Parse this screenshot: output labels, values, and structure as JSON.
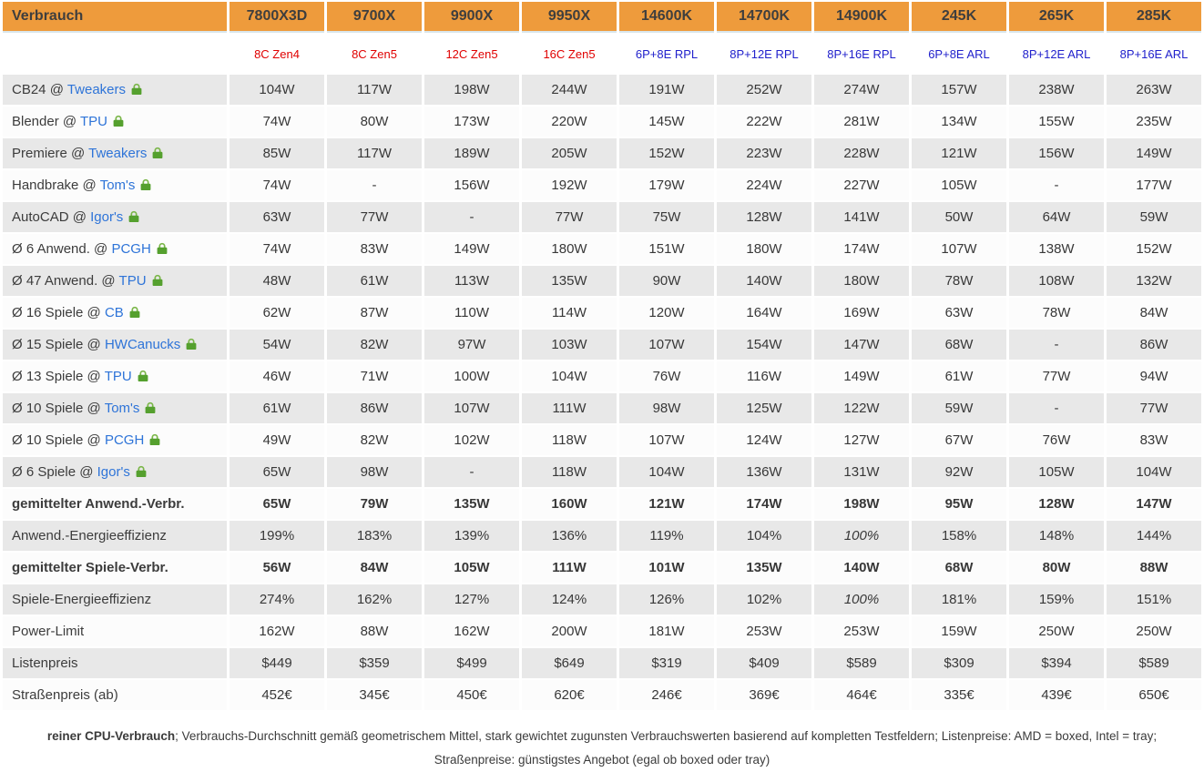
{
  "chart_data": {
    "type": "table",
    "title": "Verbrauch",
    "columns": [
      "7800X3D",
      "9700X",
      "9900X",
      "9950X",
      "14600K",
      "14700K",
      "14900K",
      "245K",
      "265K",
      "285K"
    ],
    "column_subtitles": [
      "8C Zen4",
      "8C Zen5",
      "12C Zen5",
      "16C Zen5",
      "6P+8E RPL",
      "8P+12E RPL",
      "8P+16E RPL",
      "6P+8E ARL",
      "8P+12E ARL",
      "8P+16E ARL"
    ],
    "column_vendors": [
      "amd",
      "amd",
      "amd",
      "amd",
      "intel",
      "intel",
      "intel",
      "intel",
      "intel",
      "intel"
    ],
    "rows": [
      {
        "label_prefix": "CB24 @ ",
        "source_link": "Tweakers",
        "row_style": "benchmark",
        "values": [
          "104W",
          "117W",
          "198W",
          "244W",
          "191W",
          "252W",
          "274W",
          "157W",
          "238W",
          "263W"
        ]
      },
      {
        "label_prefix": "Blender @ ",
        "source_link": "TPU",
        "row_style": "benchmark",
        "values": [
          "74W",
          "80W",
          "173W",
          "220W",
          "145W",
          "222W",
          "281W",
          "134W",
          "155W",
          "235W"
        ]
      },
      {
        "label_prefix": "Premiere @ ",
        "source_link": "Tweakers",
        "row_style": "benchmark",
        "values": [
          "85W",
          "117W",
          "189W",
          "205W",
          "152W",
          "223W",
          "228W",
          "121W",
          "156W",
          "149W"
        ]
      },
      {
        "label_prefix": "Handbrake @ ",
        "source_link": "Tom's",
        "row_style": "benchmark",
        "values": [
          "74W",
          "-",
          "156W",
          "192W",
          "179W",
          "224W",
          "227W",
          "105W",
          "-",
          "177W"
        ]
      },
      {
        "label_prefix": "AutoCAD @ ",
        "source_link": "Igor's",
        "row_style": "benchmark",
        "values": [
          "63W",
          "77W",
          "-",
          "77W",
          "75W",
          "128W",
          "141W",
          "50W",
          "64W",
          "59W"
        ]
      },
      {
        "label_prefix": "Ø 6 Anwend. @ ",
        "source_link": "PCGH",
        "row_style": "benchmark",
        "values": [
          "74W",
          "83W",
          "149W",
          "180W",
          "151W",
          "180W",
          "174W",
          "107W",
          "138W",
          "152W"
        ]
      },
      {
        "label_prefix": "Ø 47 Anwend. @ ",
        "source_link": "TPU",
        "row_style": "benchmark",
        "values": [
          "48W",
          "61W",
          "113W",
          "135W",
          "90W",
          "140W",
          "180W",
          "78W",
          "108W",
          "132W"
        ]
      },
      {
        "label_prefix": "Ø 16 Spiele @ ",
        "source_link": "CB",
        "row_style": "benchmark",
        "values": [
          "62W",
          "87W",
          "110W",
          "114W",
          "120W",
          "164W",
          "169W",
          "63W",
          "78W",
          "84W"
        ]
      },
      {
        "label_prefix": "Ø 15 Spiele @ ",
        "source_link": "HWCanucks",
        "row_style": "benchmark",
        "values": [
          "54W",
          "82W",
          "97W",
          "103W",
          "107W",
          "154W",
          "147W",
          "68W",
          "-",
          "86W"
        ]
      },
      {
        "label_prefix": "Ø 13 Spiele @ ",
        "source_link": "TPU",
        "row_style": "benchmark",
        "values": [
          "46W",
          "71W",
          "100W",
          "104W",
          "76W",
          "116W",
          "149W",
          "61W",
          "77W",
          "94W"
        ]
      },
      {
        "label_prefix": "Ø 10 Spiele @ ",
        "source_link": "Tom's",
        "row_style": "benchmark",
        "values": [
          "61W",
          "86W",
          "107W",
          "111W",
          "98W",
          "125W",
          "122W",
          "59W",
          "-",
          "77W"
        ]
      },
      {
        "label_prefix": "Ø 10 Spiele @ ",
        "source_link": "PCGH",
        "row_style": "benchmark",
        "values": [
          "49W",
          "82W",
          "102W",
          "118W",
          "107W",
          "124W",
          "127W",
          "67W",
          "76W",
          "83W"
        ]
      },
      {
        "label_prefix": "Ø 6 Spiele @ ",
        "source_link": "Igor's",
        "row_style": "benchmark",
        "values": [
          "65W",
          "98W",
          "-",
          "118W",
          "104W",
          "136W",
          "131W",
          "92W",
          "105W",
          "104W"
        ]
      },
      {
        "label": "gemittelter Anwend.-Verbr.",
        "row_style": "summary-bold",
        "values": [
          "65W",
          "79W",
          "135W",
          "160W",
          "121W",
          "174W",
          "198W",
          "95W",
          "128W",
          "147W"
        ]
      },
      {
        "label": "Anwend.-Energieeffizienz",
        "row_style": "colored",
        "italic_values": [
          "100%"
        ],
        "values": [
          "199%",
          "183%",
          "139%",
          "136%",
          "119%",
          "104%",
          "100%",
          "158%",
          "148%",
          "144%"
        ]
      },
      {
        "label": "gemittelter Spiele-Verbr.",
        "row_style": "summary-bold",
        "values": [
          "56W",
          "84W",
          "105W",
          "111W",
          "101W",
          "135W",
          "140W",
          "68W",
          "80W",
          "88W"
        ]
      },
      {
        "label": "Spiele-Energieeffizienz",
        "row_style": "colored",
        "italic_values": [
          "100%"
        ],
        "values": [
          "274%",
          "162%",
          "127%",
          "124%",
          "126%",
          "102%",
          "100%",
          "181%",
          "159%",
          "151%"
        ]
      },
      {
        "label": "Power-Limit",
        "row_style": "colored",
        "values": [
          "162W",
          "88W",
          "162W",
          "200W",
          "181W",
          "253W",
          "253W",
          "159W",
          "250W",
          "250W"
        ]
      },
      {
        "label": "Listenpreis",
        "row_style": "colored",
        "values": [
          "$449",
          "$359",
          "$499",
          "$649",
          "$319",
          "$409",
          "$589",
          "$309",
          "$394",
          "$589"
        ]
      },
      {
        "label": "Straßenpreis (ab)",
        "row_style": "colored",
        "values": [
          "452€",
          "345€",
          "450€",
          "620€",
          "246€",
          "369€",
          "464€",
          "335€",
          "439€",
          "650€"
        ]
      }
    ],
    "footnote_bold": "reiner CPU-Verbrauch",
    "footnote_rest": "; Verbrauchs-Durchschnitt gemäß geometrischem Mittel, stark gewichtet zugunsten Verbrauchswerten basierend auf kompletten Testfeldern; Listenpreise: AMD = boxed, Intel = tray; Straßenpreise: günstigstes Angebot (egal ob boxed oder tray)"
  },
  "colors": {
    "header_bg": "#ee9b3c",
    "header_text": "#3e3e3e",
    "amd_red": "#e00000",
    "intel_blue": "#2121cc",
    "link_blue": "#2e74d8",
    "lock_green": "#55a02e",
    "lock_shackle_green": "#7ab648",
    "row_gray": "#e8e8e8",
    "row_white": "#fcfcfc",
    "value_text": "#383838"
  },
  "icons": {
    "lock": "lock-icon"
  }
}
